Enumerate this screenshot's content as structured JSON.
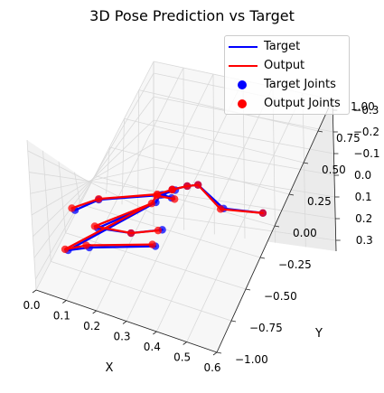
{
  "chart_data": {
    "type": "line3d",
    "title": "3D Pose Prediction vs Target",
    "xlabel": "X",
    "ylabel": "Y",
    "zlabel": "",
    "x_ticks": [
      "0.0",
      "0.1",
      "0.2",
      "0.3",
      "0.4",
      "0.5",
      "0.6"
    ],
    "y_ticks": [
      "−1.00",
      "−0.75",
      "−0.50",
      "−0.25",
      "0.00",
      "0.25",
      "0.50",
      "0.75",
      "1.00"
    ],
    "z_ticks": [
      "−0.3",
      "−0.2",
      "−0.1",
      "0.0",
      "0.1",
      "0.2",
      "0.3"
    ],
    "grid": true,
    "legend_position": "top-right",
    "legend": [
      {
        "label": "Target",
        "kind": "line",
        "color": "#0000ff"
      },
      {
        "label": "Output",
        "kind": "line",
        "color": "#ff0000"
      },
      {
        "label": "Target Joints",
        "kind": "marker",
        "color": "#0000ff"
      },
      {
        "label": "Output Joints",
        "kind": "marker",
        "color": "#ff0000"
      }
    ],
    "series": [
      {
        "name": "Target",
        "color": "#0000ff",
        "joints": [
          [
            0.22,
            0.0,
            -0.17
          ],
          [
            0.35,
            0.4,
            0.22
          ],
          [
            0.4,
            0.8,
            0.22
          ],
          [
            0.25,
            0.1,
            -0.15
          ],
          [
            0.22,
            0.05,
            0.04
          ],
          [
            0.22,
            0.2,
            0.2
          ],
          [
            0.1,
            -0.4,
            0.03
          ],
          [
            0.05,
            -0.55,
            -0.06
          ],
          [
            0.22,
            -0.08,
            -0.25
          ],
          [
            0.1,
            -0.45,
            -0.26
          ],
          [
            0.2,
            -0.4,
            -0.27
          ],
          [
            0.28,
            -0.28,
            -0.3
          ],
          [
            0.05,
            -0.7,
            -0.28
          ],
          [
            0.1,
            -0.6,
            -0.3
          ],
          [
            0.28,
            -0.4,
            -0.34
          ],
          [
            0.27,
            0.2,
            -0.11
          ],
          [
            0.29,
            0.28,
            -0.07
          ],
          [
            0.24,
            0.1,
            -0.14
          ]
        ],
        "bones": [
          [
            0,
            3
          ],
          [
            3,
            17
          ],
          [
            17,
            15
          ],
          [
            15,
            16
          ],
          [
            16,
            1
          ],
          [
            1,
            2
          ],
          [
            0,
            4
          ],
          [
            4,
            5
          ],
          [
            0,
            6
          ],
          [
            6,
            7
          ],
          [
            0,
            8
          ],
          [
            8,
            9
          ],
          [
            9,
            10
          ],
          [
            10,
            11
          ],
          [
            8,
            12
          ],
          [
            12,
            13
          ],
          [
            13,
            14
          ]
        ]
      },
      {
        "name": "Output",
        "color": "#ff0000",
        "joints": [
          [
            0.21,
            0.0,
            -0.17
          ],
          [
            0.35,
            0.35,
            0.23
          ],
          [
            0.4,
            0.8,
            0.22
          ],
          [
            0.24,
            0.1,
            -0.14
          ],
          [
            0.21,
            0.0,
            0.05
          ],
          [
            0.23,
            0.2,
            0.21
          ],
          [
            0.1,
            -0.4,
            0.04
          ],
          [
            0.04,
            -0.55,
            -0.05
          ],
          [
            0.21,
            -0.1,
            -0.25
          ],
          [
            0.09,
            -0.45,
            -0.25
          ],
          [
            0.2,
            -0.4,
            -0.27
          ],
          [
            0.27,
            -0.3,
            -0.29
          ],
          [
            0.04,
            -0.7,
            -0.28
          ],
          [
            0.09,
            -0.6,
            -0.29
          ],
          [
            0.27,
            -0.4,
            -0.33
          ],
          [
            0.27,
            0.2,
            -0.11
          ],
          [
            0.29,
            0.28,
            -0.07
          ],
          [
            0.24,
            0.1,
            -0.14
          ]
        ],
        "bones": [
          [
            0,
            3
          ],
          [
            3,
            17
          ],
          [
            17,
            15
          ],
          [
            15,
            16
          ],
          [
            16,
            1
          ],
          [
            1,
            2
          ],
          [
            0,
            4
          ],
          [
            4,
            5
          ],
          [
            0,
            6
          ],
          [
            6,
            7
          ],
          [
            0,
            8
          ],
          [
            8,
            9
          ],
          [
            9,
            10
          ],
          [
            10,
            11
          ],
          [
            8,
            12
          ],
          [
            12,
            13
          ],
          [
            13,
            14
          ]
        ]
      }
    ]
  }
}
